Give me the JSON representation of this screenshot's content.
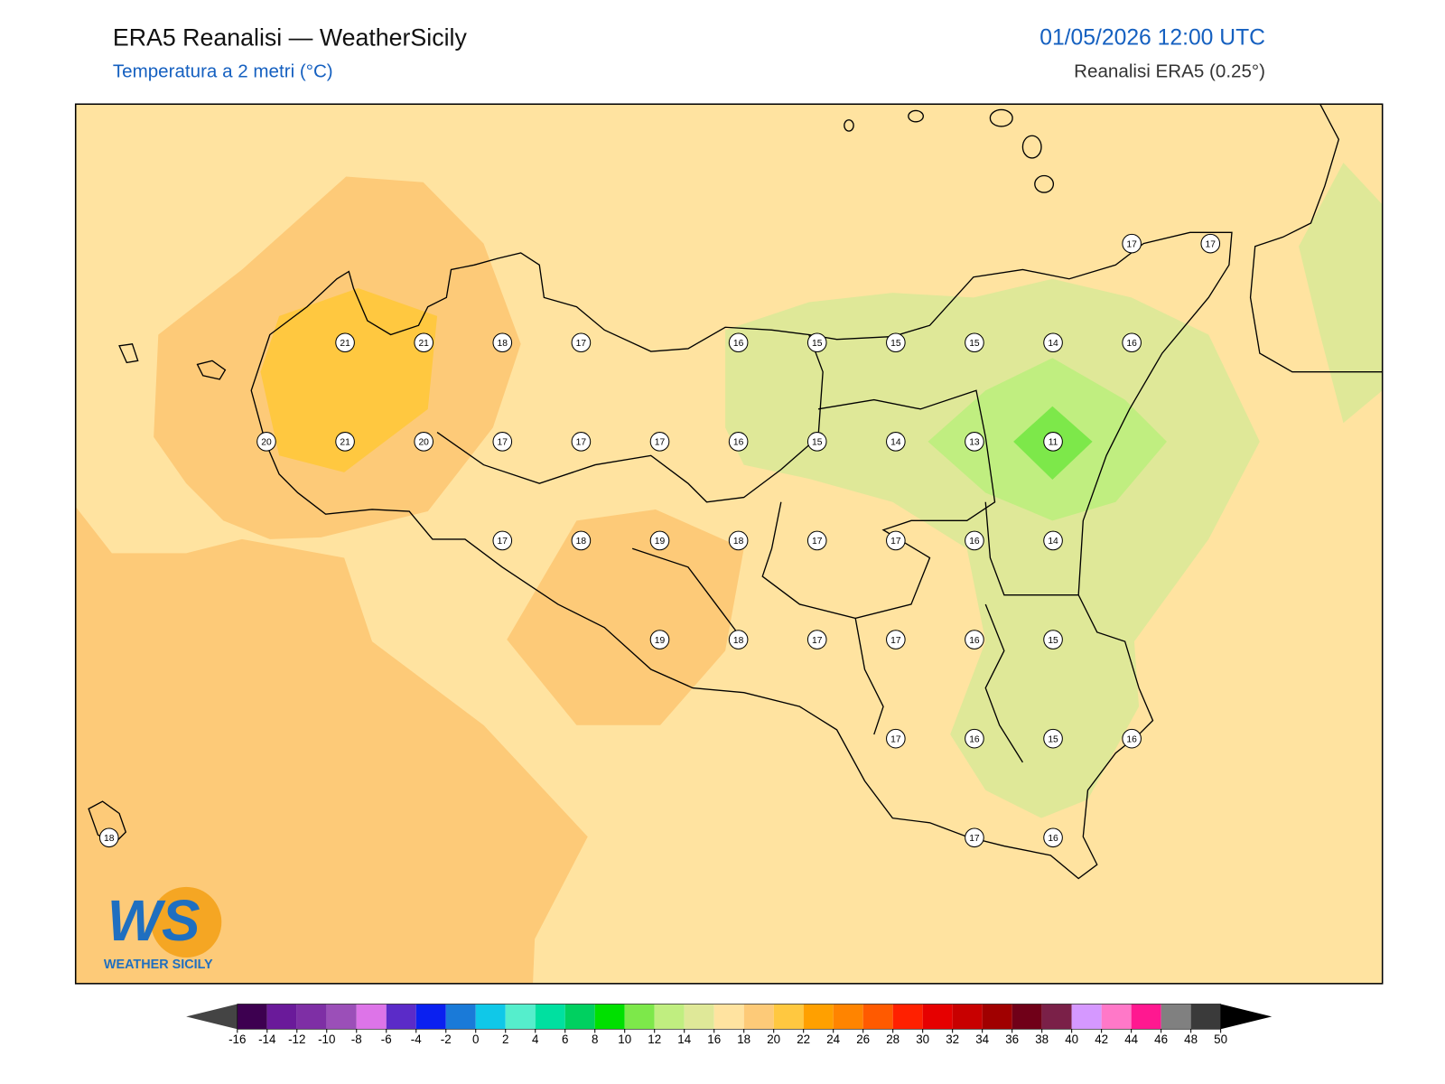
{
  "header": {
    "title": "ERA5 Reanalisi — WeatherSicily",
    "subtitle": "Temperatura a 2 metri (°C)",
    "datetime": "01/05/2026 12:00 UTC",
    "source": "Reanalisi ERA5 (0.25°)"
  },
  "map": {
    "station_grid": [
      [
        null,
        null,
        null,
        null,
        null,
        null,
        null,
        null,
        null,
        null,
        null,
        null,
        null,
        17,
        17
      ],
      [
        null,
        null,
        null,
        21,
        21,
        18,
        17,
        null,
        16,
        15,
        15,
        15,
        14,
        16,
        null
      ],
      [
        null,
        null,
        20,
        21,
        20,
        17,
        17,
        17,
        16,
        15,
        14,
        13,
        11,
        null,
        null
      ],
      [
        null,
        null,
        null,
        null,
        null,
        17,
        18,
        19,
        18,
        17,
        17,
        16,
        14,
        null,
        null
      ],
      [
        null,
        null,
        null,
        null,
        null,
        null,
        null,
        19,
        18,
        17,
        17,
        16,
        15,
        null,
        null
      ],
      [
        null,
        null,
        null,
        null,
        null,
        null,
        null,
        null,
        null,
        null,
        17,
        16,
        15,
        16,
        null
      ],
      [
        18,
        null,
        null,
        null,
        null,
        null,
        null,
        null,
        null,
        null,
        null,
        17,
        16,
        null,
        null
      ]
    ]
  },
  "colorbar": {
    "ticks": [
      -16,
      -14,
      -12,
      -10,
      -8,
      -6,
      -4,
      -2,
      0,
      2,
      4,
      6,
      8,
      10,
      12,
      14,
      16,
      18,
      20,
      22,
      24,
      26,
      28,
      30,
      32,
      34,
      36,
      38,
      40,
      42,
      44,
      46,
      48,
      50
    ],
    "colors": [
      "#3d0050",
      "#6a1a9a",
      "#7e2fa5",
      "#9b4fb8",
      "#dd74e8",
      "#5b2bc8",
      "#0a20f0",
      "#1a7ad8",
      "#10c8e8",
      "#55eecc",
      "#00e0a0",
      "#00d060",
      "#00e000",
      "#7de84a",
      "#c0ee80",
      "#dfe898",
      "#ffe3a0",
      "#fdca78",
      "#ffc840",
      "#ffa000",
      "#ff8400",
      "#ff5a00",
      "#ff2000",
      "#e60000",
      "#c80000",
      "#a00000",
      "#700018",
      "#7a2048",
      "#d598ff",
      "#ff78c8",
      "#ff1890",
      "#808080",
      "#3a3a3a"
    ],
    "under_color": "#444444",
    "over_color": "#000000"
  },
  "logo": {
    "letters": "WS",
    "caption": "WEATHER SICILY"
  }
}
